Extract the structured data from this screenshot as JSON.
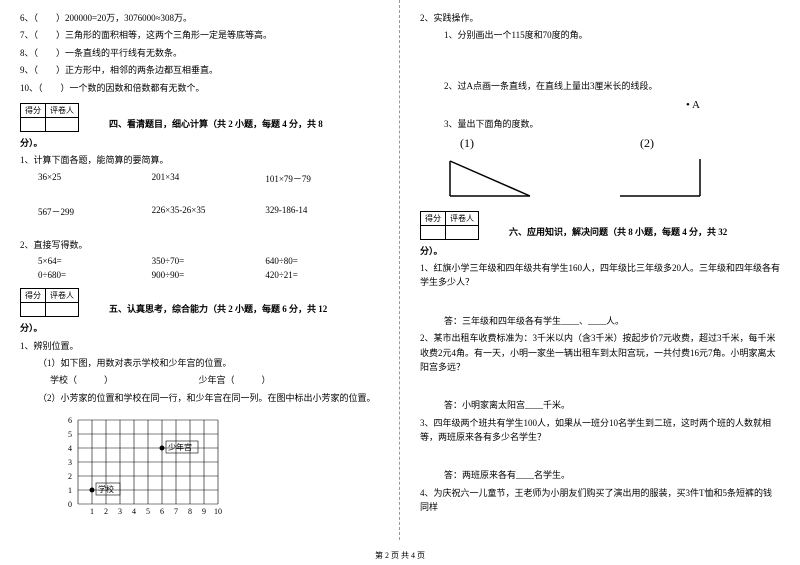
{
  "left": {
    "q6": "6、（　　）200000=20万，3076000≈308万。",
    "q7": "7、（　　）三角形的面积相等，这两个三角形一定是等底等高。",
    "q8": "8、（　　）一条直线的平行线有无数条。",
    "q9": "9、（　　）正方形中，相邻的两条边都互相垂直。",
    "q10": "10、（　　）一个数的因数和倍数都有无数个。",
    "score_label1": "得分",
    "score_label2": "评卷人",
    "section4": "四、看清题目，细心计算（共 2 小题，每题 4 分，共 8",
    "fen": "分）。",
    "s4q1": "1、计算下面各题，能简算的要简算。",
    "c1a": "36×25",
    "c1b": "201×34",
    "c1c": "101×79－79",
    "c2a": "567－299",
    "c2b": "226×35-26×35",
    "c2c": "329-186-14",
    "s4q2": "2、直接写得数。",
    "d1a": "5×64=",
    "d1b": "350÷70=",
    "d1c": "640÷80=",
    "d2a": "0÷680=",
    "d2b": "900÷90=",
    "d2c": "420÷21=",
    "section5": "五、认真思考，综合能力（共 2 小题，每题 6 分，共 12",
    "s5q1": "1、辨别位置。",
    "s5q1a": "（1）如下图，用数对表示学校和少年宫的位置。",
    "s5q1a2": "学校（　　　）　　　　　　　　　　少年宫（　　　）",
    "s5q1b": "（2）小芳家的位置和学校在同一行，和少年宫在同一列。在图中标出小芳家的位置。",
    "grid": {
      "y_labels": [
        "6",
        "5",
        "4",
        "3",
        "2",
        "1",
        "0"
      ],
      "x_labels": [
        "1",
        "2",
        "3",
        "4",
        "5",
        "6",
        "7",
        "8",
        "9",
        "10"
      ],
      "school_label": "学校",
      "palace_label": "少年宫",
      "cols": 10,
      "rows": 6,
      "cell": 14
    }
  },
  "right": {
    "s5q2": "2、实践操作。",
    "s5q2a": "1、分别画出一个115度和70度的角。",
    "s5q2b": "2、过A点画一条直线，在直线上量出3厘米长的线段。",
    "ptA": "• A",
    "s5q2c": "3、量出下面角的度数。",
    "lbl1": "(1)",
    "lbl2": "(2)",
    "score_label1": "得分",
    "score_label2": "评卷人",
    "section6": "六、应用知识，解决问题（共 8 小题，每题 4 分，共 32",
    "fen": "分）。",
    "q1": "1、红旗小学三年级和四年级共有学生160人，四年级比三年级多20人。三年级和四年级各有学生多少人？",
    "a1": "答：三年级和四年级各有学生____、____人。",
    "q2": "2、某市出租车收费标准为：3千米以内（含3千米）按起步价7元收费，超过3千米，每千米收费2元4角。有一天，小明一家坐一辆出租车到太阳宫玩，一共付费16元7角。小明家离太阳宫多远？",
    "a2": "答：小明家离太阳宫____千米。",
    "q3": "3、四年级两个班共有学生100人，如果从一班分10名学生到二班，这时两个班的人数就相等，两班原来各有多少名学生？",
    "a3": "答：两班原来各有____名学生。",
    "q4": "4、为庆祝六一儿童节，王老师为小朋友们购买了演出用的服装，买3件T恤和5条短裤的钱同样"
  },
  "footer": "第 2 页 共 4 页"
}
